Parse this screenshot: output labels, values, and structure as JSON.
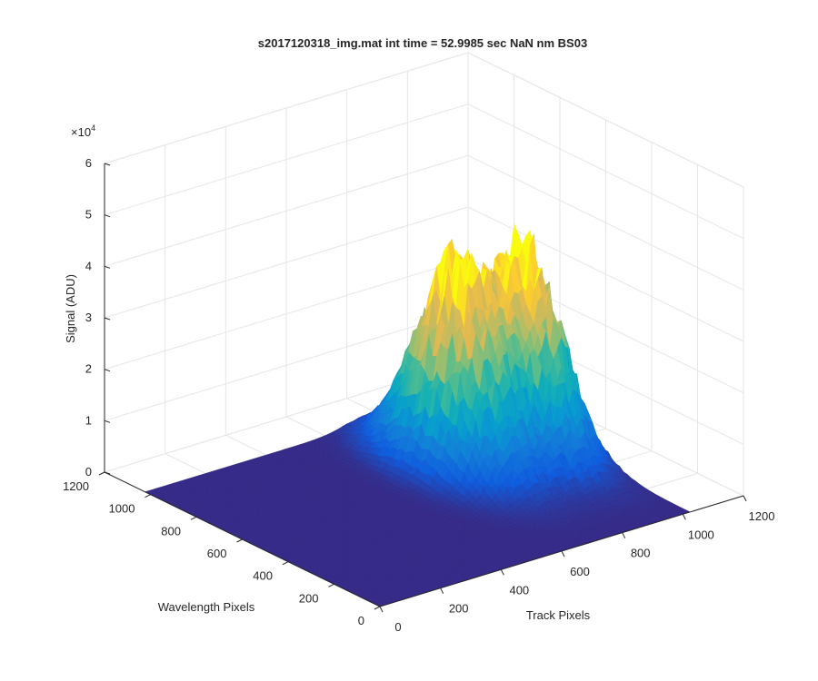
{
  "chart_data": {
    "type": "surface",
    "title": "s2017120318_img.mat int time = 52.9985 sec  NaN nm BS03",
    "xlabel": "Track Pixels",
    "ylabel": "Wavelength Pixels",
    "zlabel": "Signal (ADU)",
    "z_exponent_label": "×10",
    "z_exponent_power": "4",
    "xlim": [
      0,
      1200
    ],
    "ylim": [
      0,
      1200
    ],
    "zlim": [
      0,
      60000
    ],
    "x_ticks": [
      "0",
      "200",
      "400",
      "600",
      "800",
      "1000",
      "1200"
    ],
    "y_ticks": [
      "0",
      "200",
      "400",
      "600",
      "800",
      "1000",
      "1200"
    ],
    "z_ticks": [
      "0",
      "1",
      "2",
      "3",
      "4",
      "5",
      "6"
    ],
    "grid": true,
    "colormap": "parula",
    "colors": {
      "axis": "#262626",
      "grid": "#e6e6e6",
      "surface_low": "#352a87",
      "surface_high": "#f9fb0e"
    },
    "surface_extent": {
      "x": [
        0,
        1024
      ],
      "y": [
        0,
        1024
      ]
    },
    "peaks": [
      {
        "track_center": 740,
        "track_width": 75,
        "wavelength_center": 630,
        "wavelength_width": 160,
        "max_signal": 40000
      },
      {
        "track_center": 920,
        "track_width": 65,
        "wavelength_center": 580,
        "wavelength_width": 150,
        "max_signal": 39500
      }
    ]
  }
}
